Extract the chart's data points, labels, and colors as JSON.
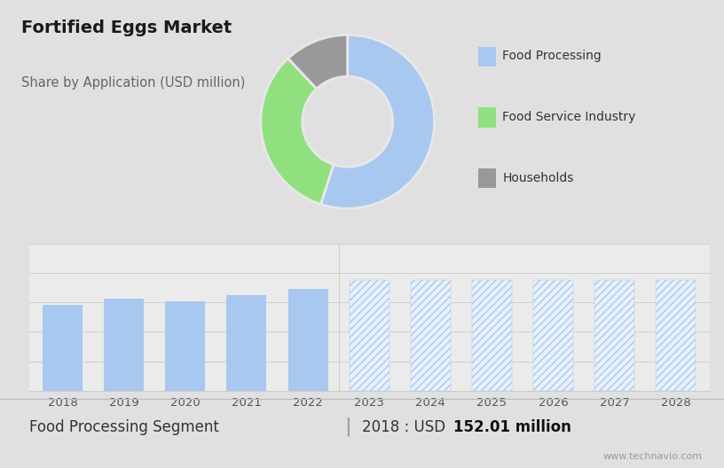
{
  "title": "Fortified Eggs Market",
  "subtitle": "Share by Application (USD million)",
  "pie_sizes": [
    55,
    33,
    12
  ],
  "pie_colors": [
    "#a8c8f0",
    "#90e080",
    "#999999"
  ],
  "pie_edge_color": "#e8e8e8",
  "legend_labels": [
    "Food Processing",
    "Food Service Industry",
    "Households"
  ],
  "legend_colors": [
    "#a8c8f0",
    "#90e080",
    "#999999"
  ],
  "bar_years": [
    2018,
    2019,
    2020,
    2021,
    2022,
    2023,
    2024,
    2025,
    2026,
    2027,
    2028
  ],
  "bar_values_historical": [
    152,
    162,
    158,
    168,
    180,
    0,
    0,
    0,
    0,
    0,
    0
  ],
  "bar_values_forecast": [
    0,
    0,
    0,
    0,
    0,
    195,
    195,
    195,
    195,
    195,
    195
  ],
  "bar_color_solid": "#a8c8f0",
  "bar_color_hatch_face": "#e8f0fa",
  "bar_color_hatch_edge": "#a8c8f0",
  "hatch_pattern": "////",
  "background_top": "#e0e0e0",
  "background_bottom": "#ebebeb",
  "footer_bg": "#ffffff",
  "footer_left": "Food Processing Segment",
  "footer_right_prefix": "2018 : USD ",
  "footer_right_bold": "152.01 million",
  "footer_website": "www.technavio.com",
  "grid_color": "#d0d0d0",
  "spine_color": "#cccccc"
}
